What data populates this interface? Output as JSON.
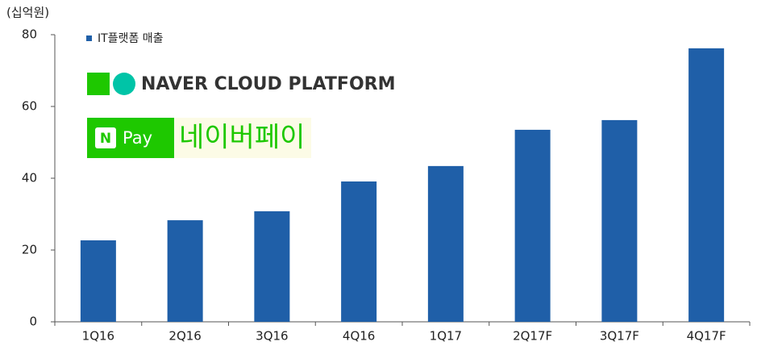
{
  "chart_data": {
    "type": "bar",
    "unit_label": "(십억원)",
    "categories": [
      "1Q16",
      "2Q16",
      "3Q16",
      "4Q16",
      "1Q17",
      "2Q17F",
      "3Q17F",
      "4Q17F"
    ],
    "series": [
      {
        "name": "IT플랫폼 매출",
        "color": "#1f5fa8",
        "values": [
          22.7,
          28.3,
          30.8,
          39.1,
          43.4,
          53.5,
          56.2,
          76.2
        ]
      }
    ],
    "ylim": [
      0,
      80
    ],
    "yticks": [
      0,
      20,
      40,
      60,
      80
    ],
    "grid": false,
    "annotations": [
      "NAVER CLOUD PLATFORM",
      "N",
      "Pay",
      "네이버페이"
    ]
  }
}
